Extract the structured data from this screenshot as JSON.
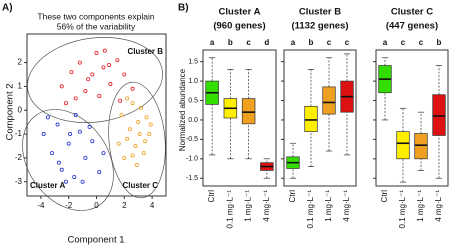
{
  "panel_labels": [
    "A)",
    "B)"
  ],
  "chart_data": [
    {
      "type": "scatter",
      "annotation": [
        "These two components explain",
        "56% of the variability"
      ],
      "xlabel": "Component 1",
      "ylabel": "Component 2",
      "xlim": [
        -5,
        5
      ],
      "ylim": [
        -3.6,
        3.2
      ],
      "xticks": [
        -4,
        -2,
        0,
        2,
        4
      ],
      "yticks": [
        -3,
        -2,
        -1,
        0,
        1,
        2
      ],
      "series": [
        {
          "name": "Cluster B",
          "color": "#e8202a",
          "x": [
            -2.5,
            -1.8,
            -1.2,
            -0.6,
            0,
            0.5,
            1,
            1.5,
            2,
            2.6,
            -1.5,
            -0.8,
            0.2,
            0.9,
            1.7,
            -0.3,
            0.6,
            -2.2
          ],
          "values": [
            1.0,
            1.6,
            2.0,
            1.3,
            2.4,
            1.8,
            1.1,
            2.1,
            1.5,
            0.9,
            0.5,
            0.8,
            0.6,
            1.9,
            0.4,
            1.5,
            2.5,
            0.3
          ]
        },
        {
          "name": "Cluster A",
          "color": "#2233cc",
          "x": [
            -3.8,
            -3.2,
            -2.8,
            -2.5,
            -2,
            -1.6,
            -1.2,
            -0.8,
            -0.3,
            0.2,
            -3.5,
            -2.2,
            -1.5,
            -0.5,
            0.5,
            -2.7,
            -1.0,
            -1.9
          ],
          "values": [
            -1.0,
            -1.8,
            -0.6,
            -2.5,
            -1.4,
            -2.8,
            -0.9,
            -2.0,
            -1.3,
            -2.6,
            -0.3,
            -3.0,
            -0.2,
            -0.7,
            -1.8,
            -2.2,
            -3.0,
            -1.0
          ]
        },
        {
          "name": "Cluster C",
          "color": "#f0a020",
          "x": [
            1.8,
            2.2,
            2.6,
            3,
            3.4,
            3.8,
            2.0,
            2.8,
            3.2,
            3.6,
            2.4,
            1.6,
            2.9,
            3.5,
            2.2,
            3.9,
            2.6,
            3.1
          ],
          "values": [
            -0.2,
            -1.2,
            0.3,
            -0.5,
            -1.8,
            -1.0,
            -2.0,
            -1.5,
            0.1,
            -0.3,
            -0.8,
            -1.4,
            -2.3,
            -1.3,
            0.5,
            -0.6,
            -1.9,
            -1.0
          ]
        }
      ]
    },
    {
      "type": "box",
      "title": "Cluster A",
      "subtitle": "(960 genes)",
      "ylabel": "Normalized abundance",
      "categories": [
        "Ctrl",
        "0.1 mg·L⁻¹",
        "1 mg·L⁻¹",
        "4 mg·L⁻¹"
      ],
      "letters": [
        "a",
        "b",
        "c",
        "d"
      ],
      "colors": [
        "#33dd00",
        "#ffee00",
        "#f0a020",
        "#dd1111"
      ],
      "ylim": [
        -1.7,
        1.8
      ],
      "yticks": [
        {
          "value": -1.5,
          "label": "-1.5"
        },
        {
          "value": -1,
          "label": "-1.0"
        },
        -0.5,
        {
          "value": 0,
          "label": "0.0"
        },
        0.5,
        {
          "value": 1,
          "label": "1.0"
        },
        1.5
      ],
      "boxes": [
        {
          "low": -0.9,
          "q1": 0.4,
          "median": 0.7,
          "q3": 1.0,
          "high": 1.6
        },
        {
          "low": -1.0,
          "q1": 0.05,
          "median": 0.3,
          "q3": 0.55,
          "high": 1.3
        },
        {
          "low": -1.0,
          "q1": -0.1,
          "median": 0.2,
          "q3": 0.55,
          "high": 1.3
        },
        {
          "low": -1.5,
          "q1": -1.3,
          "median": -1.2,
          "q3": -1.1,
          "high": -1.0
        }
      ]
    },
    {
      "type": "box",
      "title": "Cluster B",
      "subtitle": "(1132 genes)",
      "categories": [
        "Ctrl",
        "0.1 mg·L⁻¹",
        "1 mg·L⁻¹",
        "4 mg·L⁻¹"
      ],
      "letters": [
        "a",
        "b",
        "c",
        "c"
      ],
      "colors": [
        "#33dd00",
        "#ffee00",
        "#f0a020",
        "#dd1111"
      ],
      "ylim": [
        -1.7,
        1.8
      ],
      "boxes": [
        {
          "low": -1.5,
          "q1": -1.25,
          "median": -1.1,
          "q3": -0.95,
          "high": -0.6
        },
        {
          "low": -1.2,
          "q1": -0.3,
          "median": 0.0,
          "q3": 0.35,
          "high": 1.3
        },
        {
          "low": -0.8,
          "q1": 0.15,
          "median": 0.45,
          "q3": 0.85,
          "high": 1.6
        },
        {
          "low": -0.9,
          "q1": 0.2,
          "median": 0.6,
          "q3": 1.0,
          "high": 1.7
        }
      ]
    },
    {
      "type": "box",
      "title": "Cluster C",
      "subtitle": "(447 genes)",
      "categories": [
        "Ctrl",
        "0.1 mg·L⁻¹",
        "1 mg·L⁻¹",
        "4 mg·L⁻¹"
      ],
      "letters": [
        "a",
        "c",
        "c",
        "b"
      ],
      "colors": [
        "#33dd00",
        "#ffee00",
        "#f0a020",
        "#dd1111"
      ],
      "ylim": [
        -1.7,
        1.8
      ],
      "boxes": [
        {
          "low": 0.0,
          "q1": 0.7,
          "median": 1.05,
          "q3": 1.4,
          "high": 1.6
        },
        {
          "low": -1.6,
          "q1": -1.0,
          "median": -0.6,
          "q3": -0.3,
          "high": 0.3
        },
        {
          "low": -1.3,
          "q1": -1.0,
          "median": -0.65,
          "q3": -0.35,
          "high": 0.2
        },
        {
          "low": -1.5,
          "q1": -0.4,
          "median": 0.1,
          "q3": 0.65,
          "high": 1.4
        }
      ]
    }
  ]
}
